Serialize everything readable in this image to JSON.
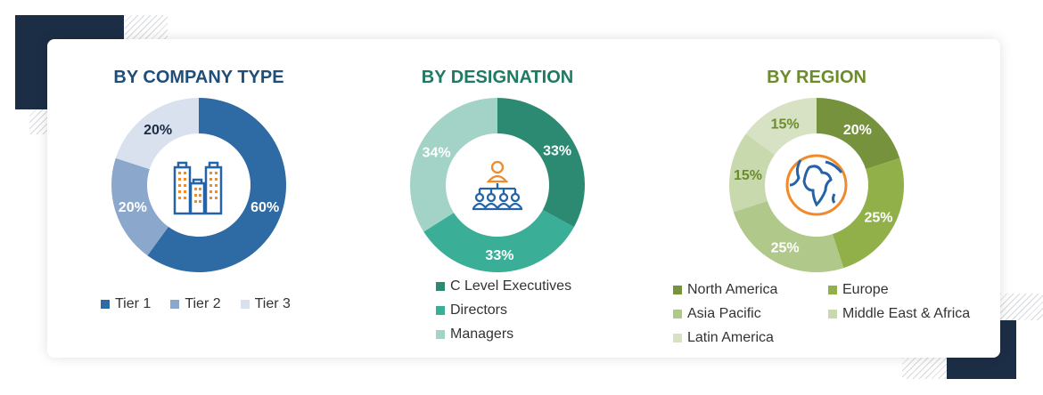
{
  "chart_data": [
    {
      "type": "pie",
      "title": "BY COMPANY TYPE",
      "title_color": "#1f4e79",
      "center_icon": "buildings-icon",
      "categories": [
        "Tier 1",
        "Tier 2",
        "Tier 3"
      ],
      "values": [
        60,
        20,
        20
      ],
      "labels": [
        "60%",
        "20%",
        "20%"
      ],
      "colors": [
        "#2e6aa3",
        "#8ca7cc",
        "#d9e1ee"
      ],
      "label_colors": [
        "#ffffff",
        "#ffffff",
        "#1c2e45"
      ],
      "legend": "bottom"
    },
    {
      "type": "pie",
      "title": "BY DESIGNATION",
      "title_color": "#1e7a62",
      "center_icon": "hierarchy-people-icon",
      "categories": [
        "C Level Executives",
        "Directors",
        "Managers"
      ],
      "values": [
        33,
        33,
        34
      ],
      "labels": [
        "33%",
        "33%",
        "34%"
      ],
      "colors": [
        "#2d8a72",
        "#3aae96",
        "#a3d3c6"
      ],
      "label_colors": [
        "#ffffff",
        "#ffffff",
        "#ffffff"
      ],
      "legend": "bottom"
    },
    {
      "type": "pie",
      "title": "BY REGION",
      "title_color": "#6b8c2a",
      "center_icon": "globe-icon",
      "categories": [
        "North America",
        "Europe",
        "Asia Pacific",
        "Middle East & Africa",
        "Latin America"
      ],
      "values": [
        20,
        25,
        25,
        15,
        15
      ],
      "labels": [
        "20%",
        "25%",
        "25%",
        "15%",
        "15%"
      ],
      "colors": [
        "#76923c",
        "#92b04a",
        "#b0c98a",
        "#c8d9ae",
        "#d6e2c3"
      ],
      "label_colors": [
        "#ffffff",
        "#ffffff",
        "#ffffff",
        "#6b8c2a",
        "#6b8c2a"
      ],
      "legend": "bottom"
    }
  ]
}
